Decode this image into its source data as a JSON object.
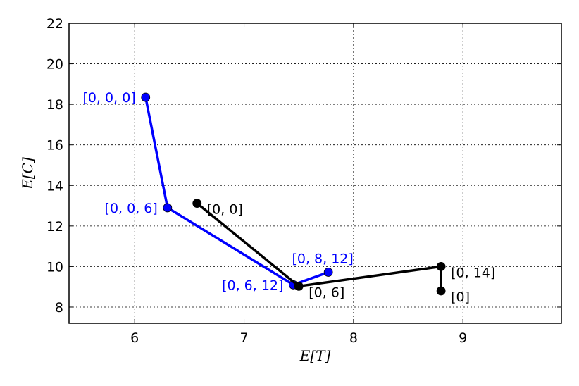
{
  "chart_data": {
    "type": "line",
    "xlabel": "E[T]",
    "ylabel": "E[C]",
    "xlim": [
      5.4,
      9.9
    ],
    "ylim": [
      7.2,
      22
    ],
    "xticks": [
      6,
      7,
      8,
      9
    ],
    "yticks": [
      8,
      10,
      12,
      14,
      16,
      18,
      20,
      22
    ],
    "grid": true,
    "series": [
      {
        "color": "#0000ff",
        "points": [
          {
            "x": 6.1,
            "y": 18.35,
            "label": "[0, 0, 0]",
            "label_pos": "left"
          },
          {
            "x": 6.3,
            "y": 12.9,
            "label": "[0, 0, 6]",
            "label_pos": "left"
          },
          {
            "x": 7.45,
            "y": 9.1,
            "label": "[0, 6, 12]",
            "label_pos": "left"
          },
          {
            "x": 7.77,
            "y": 9.72,
            "label": "[0, 8, 12]",
            "label_pos": "above"
          }
        ]
      },
      {
        "color": "#000000",
        "points": [
          {
            "x": 6.57,
            "y": 13.12,
            "label": "[0, 0]",
            "label_pos": "right"
          },
          {
            "x": 7.5,
            "y": 9.03,
            "label": "[0, 6]",
            "label_pos": "right"
          },
          {
            "x": 8.8,
            "y": 10.0,
            "label": "[0, 14]",
            "label_pos": "right"
          },
          {
            "x": 8.8,
            "y": 8.8,
            "label": "[0]",
            "label_pos": "right"
          }
        ]
      }
    ]
  }
}
